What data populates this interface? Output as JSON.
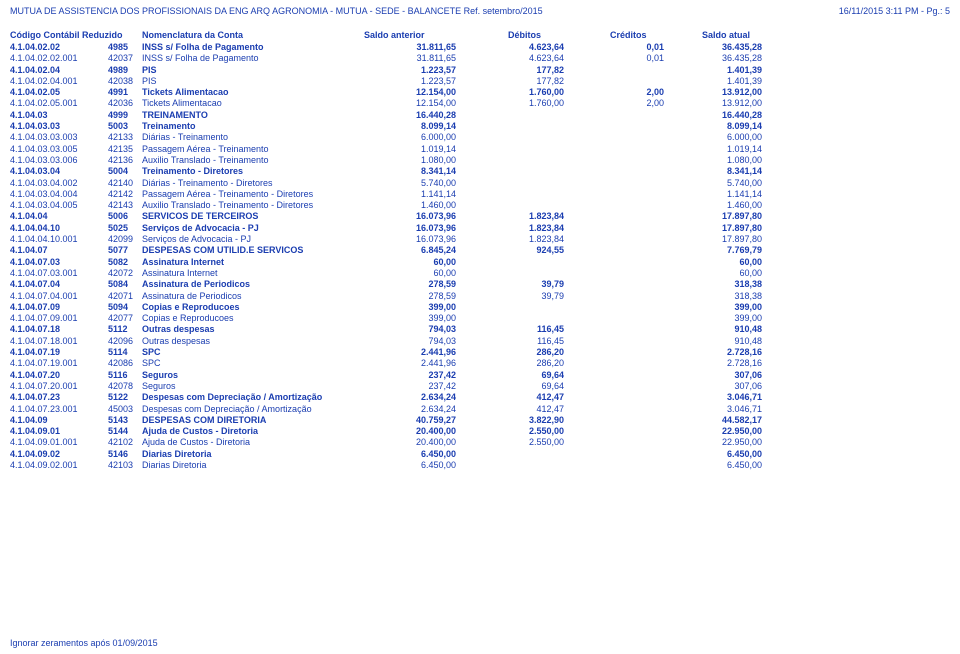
{
  "header": {
    "left": "MUTUA DE ASSISTENCIA DOS PROFISSIONAIS DA ENG ARQ AGRONOMIA - MUTUA - SEDE - BALANCETE Ref. setembro/2015",
    "right": "16/11/2015 3:11 PM - Pg.: 5"
  },
  "columns": {
    "code": "Código Contábil Reduzido",
    "nom": "Nomenclatura da Conta",
    "sa": "Saldo anterior",
    "deb": "Débitos",
    "cre": "Créditos",
    "su": "Saldo atual"
  },
  "rows": [
    {
      "bold": 1,
      "code": "4.1.04.02.02",
      "short": "4985",
      "nom": "INSS s/ Folha de Pagamento",
      "sa": "31.811,65",
      "deb": "4.623,64",
      "cre": "0,01",
      "su": "36.435,28"
    },
    {
      "bold": 0,
      "code": "4.1.04.02.02.001",
      "short": "42037",
      "nom": "INSS s/ Folha de Pagamento",
      "sa": "31.811,65",
      "deb": "4.623,64",
      "cre": "0,01",
      "su": "36.435,28"
    },
    {
      "bold": 1,
      "code": "4.1.04.02.04",
      "short": "4989",
      "nom": "PIS",
      "sa": "1.223,57",
      "deb": "177,82",
      "cre": "",
      "su": "1.401,39"
    },
    {
      "bold": 0,
      "code": "4.1.04.02.04.001",
      "short": "42038",
      "nom": "PIS",
      "sa": "1.223,57",
      "deb": "177,82",
      "cre": "",
      "su": "1.401,39"
    },
    {
      "bold": 1,
      "code": "4.1.04.02.05",
      "short": "4991",
      "nom": "Tickets Alimentacao",
      "sa": "12.154,00",
      "deb": "1.760,00",
      "cre": "2,00",
      "su": "13.912,00"
    },
    {
      "bold": 0,
      "code": "4.1.04.02.05.001",
      "short": "42036",
      "nom": "Tickets Alimentacao",
      "sa": "12.154,00",
      "deb": "1.760,00",
      "cre": "2,00",
      "su": "13.912,00"
    },
    {
      "bold": 1,
      "code": "4.1.04.03",
      "short": "4999",
      "nom": "TREINAMENTO",
      "sa": "16.440,28",
      "deb": "",
      "cre": "",
      "su": "16.440,28"
    },
    {
      "bold": 1,
      "code": "4.1.04.03.03",
      "short": "5003",
      "nom": "Treinamento",
      "sa": "8.099,14",
      "deb": "",
      "cre": "",
      "su": "8.099,14"
    },
    {
      "bold": 0,
      "code": "4.1.04.03.03.003",
      "short": "42133",
      "nom": "Diárias - Treinamento",
      "sa": "6.000,00",
      "deb": "",
      "cre": "",
      "su": "6.000,00"
    },
    {
      "bold": 0,
      "code": "4.1.04.03.03.005",
      "short": "42135",
      "nom": "Passagem Aérea - Treinamento",
      "sa": "1.019,14",
      "deb": "",
      "cre": "",
      "su": "1.019,14"
    },
    {
      "bold": 0,
      "code": "4.1.04.03.03.006",
      "short": "42136",
      "nom": "Auxilio Translado - Treinamento",
      "sa": "1.080,00",
      "deb": "",
      "cre": "",
      "su": "1.080,00"
    },
    {
      "bold": 1,
      "code": "4.1.04.03.04",
      "short": "5004",
      "nom": "Treinamento - Diretores",
      "sa": "8.341,14",
      "deb": "",
      "cre": "",
      "su": "8.341,14"
    },
    {
      "bold": 0,
      "code": "4.1.04.03.04.002",
      "short": "42140",
      "nom": "Diárias - Treinamento - Diretores",
      "sa": "5.740,00",
      "deb": "",
      "cre": "",
      "su": "5.740,00"
    },
    {
      "bold": 0,
      "code": "4.1.04.03.04.004",
      "short": "42142",
      "nom": "Passagem Aérea - Treinamento - Diretores",
      "sa": "1.141,14",
      "deb": "",
      "cre": "",
      "su": "1.141,14"
    },
    {
      "bold": 0,
      "code": "4.1.04.03.04.005",
      "short": "42143",
      "nom": "Auxilio Translado - Treinamento - Diretores",
      "sa": "1.460,00",
      "deb": "",
      "cre": "",
      "su": "1.460,00"
    },
    {
      "bold": 1,
      "code": "4.1.04.04",
      "short": "5006",
      "nom": "SERVICOS DE TERCEIROS",
      "sa": "16.073,96",
      "deb": "1.823,84",
      "cre": "",
      "su": "17.897,80"
    },
    {
      "bold": 1,
      "code": "4.1.04.04.10",
      "short": "5025",
      "nom": "Serviços de Advocacia - PJ",
      "sa": "16.073,96",
      "deb": "1.823,84",
      "cre": "",
      "su": "17.897,80"
    },
    {
      "bold": 0,
      "code": "4.1.04.04.10.001",
      "short": "42099",
      "nom": "Serviços de Advocacia - PJ",
      "sa": "16.073,96",
      "deb": "1.823,84",
      "cre": "",
      "su": "17.897,80"
    },
    {
      "bold": 1,
      "code": "4.1.04.07",
      "short": "5077",
      "nom": "DESPESAS COM UTILID.E SERVICOS",
      "sa": "6.845,24",
      "deb": "924,55",
      "cre": "",
      "su": "7.769,79"
    },
    {
      "bold": 1,
      "code": "4.1.04.07.03",
      "short": "5082",
      "nom": "Assinatura Internet",
      "sa": "60,00",
      "deb": "",
      "cre": "",
      "su": "60,00"
    },
    {
      "bold": 0,
      "code": "4.1.04.07.03.001",
      "short": "42072",
      "nom": "Assinatura Internet",
      "sa": "60,00",
      "deb": "",
      "cre": "",
      "su": "60,00"
    },
    {
      "bold": 1,
      "code": "4.1.04.07.04",
      "short": "5084",
      "nom": "Assinatura de Periodicos",
      "sa": "278,59",
      "deb": "39,79",
      "cre": "",
      "su": "318,38"
    },
    {
      "bold": 0,
      "code": "4.1.04.07.04.001",
      "short": "42071",
      "nom": "Assinatura de Periodicos",
      "sa": "278,59",
      "deb": "39,79",
      "cre": "",
      "su": "318,38"
    },
    {
      "bold": 1,
      "code": "4.1.04.07.09",
      "short": "5094",
      "nom": "Copias e Reproducoes",
      "sa": "399,00",
      "deb": "",
      "cre": "",
      "su": "399,00"
    },
    {
      "bold": 0,
      "code": "4.1.04.07.09.001",
      "short": "42077",
      "nom": "Copias e Reproducoes",
      "sa": "399,00",
      "deb": "",
      "cre": "",
      "su": "399,00"
    },
    {
      "bold": 1,
      "code": "4.1.04.07.18",
      "short": "5112",
      "nom": "Outras despesas",
      "sa": "794,03",
      "deb": "116,45",
      "cre": "",
      "su": "910,48"
    },
    {
      "bold": 0,
      "code": "4.1.04.07.18.001",
      "short": "42096",
      "nom": "Outras despesas",
      "sa": "794,03",
      "deb": "116,45",
      "cre": "",
      "su": "910,48"
    },
    {
      "bold": 1,
      "code": "4.1.04.07.19",
      "short": "5114",
      "nom": "SPC",
      "sa": "2.441,96",
      "deb": "286,20",
      "cre": "",
      "su": "2.728,16"
    },
    {
      "bold": 0,
      "code": "4.1.04.07.19.001",
      "short": "42086",
      "nom": "SPC",
      "sa": "2.441,96",
      "deb": "286,20",
      "cre": "",
      "su": "2.728,16"
    },
    {
      "bold": 1,
      "code": "4.1.04.07.20",
      "short": "5116",
      "nom": "Seguros",
      "sa": "237,42",
      "deb": "69,64",
      "cre": "",
      "su": "307,06"
    },
    {
      "bold": 0,
      "code": "4.1.04.07.20.001",
      "short": "42078",
      "nom": "Seguros",
      "sa": "237,42",
      "deb": "69,64",
      "cre": "",
      "su": "307,06"
    },
    {
      "bold": 1,
      "code": "4.1.04.07.23",
      "short": "5122",
      "nom": "Despesas com Depreciação / Amortização",
      "sa": "2.634,24",
      "deb": "412,47",
      "cre": "",
      "su": "3.046,71"
    },
    {
      "bold": 0,
      "code": "4.1.04.07.23.001",
      "short": "45003",
      "nom": "Despesas com Depreciação / Amortização",
      "sa": "2.634,24",
      "deb": "412,47",
      "cre": "",
      "su": "3.046,71"
    },
    {
      "bold": 1,
      "code": "4.1.04.09",
      "short": "5143",
      "nom": "DESPESAS COM DIRETORIA",
      "sa": "40.759,27",
      "deb": "3.822,90",
      "cre": "",
      "su": "44.582,17"
    },
    {
      "bold": 1,
      "code": "4.1.04.09.01",
      "short": "5144",
      "nom": "Ajuda de Custos - Diretoria",
      "sa": "20.400,00",
      "deb": "2.550,00",
      "cre": "",
      "su": "22.950,00"
    },
    {
      "bold": 0,
      "code": "4.1.04.09.01.001",
      "short": "42102",
      "nom": "Ajuda de Custos - Diretoria",
      "sa": "20.400,00",
      "deb": "2.550,00",
      "cre": "",
      "su": "22.950,00"
    },
    {
      "bold": 1,
      "code": "4.1.04.09.02",
      "short": "5146",
      "nom": "Diarias Diretoria",
      "sa": "6.450,00",
      "deb": "",
      "cre": "",
      "su": "6.450,00"
    },
    {
      "bold": 0,
      "code": "4.1.04.09.02.001",
      "short": "42103",
      "nom": "Diarias Diretoria",
      "sa": "6.450,00",
      "deb": "",
      "cre": "",
      "su": "6.450,00"
    }
  ],
  "footer": "Ignorar zeramentos após 01/09/2015"
}
